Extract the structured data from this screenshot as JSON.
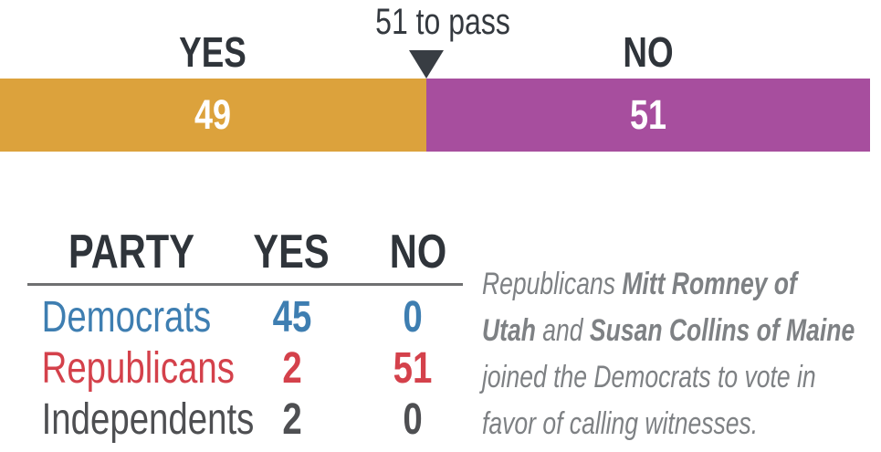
{
  "chart": {
    "threshold_label": "51 to pass",
    "yes_label": "YES",
    "no_label": "NO",
    "yes_value": "49",
    "no_value": "51"
  },
  "chart_data": {
    "type": "bar",
    "subtype": "horizontal-stacked-vote-tally",
    "title": "",
    "categories": [
      "YES",
      "NO"
    ],
    "values": [
      49,
      51
    ],
    "colors": [
      "#dca23c",
      "#a74e9e"
    ],
    "xlim": [
      0,
      100
    ],
    "grid": false,
    "legend": "none",
    "annotations": [
      {
        "label": "51 to pass",
        "x": 49,
        "marker": "down-triangle"
      }
    ],
    "party_breakdown": {
      "columns": [
        "PARTY",
        "YES",
        "NO"
      ],
      "rows": [
        [
          "Democrats",
          45,
          0
        ],
        [
          "Republicans",
          2,
          51
        ],
        [
          "Independents",
          2,
          0
        ]
      ]
    }
  },
  "colors": {
    "yes_bar": "#dca23c",
    "no_bar": "#a74e9e",
    "bar_value_text": "#ffffff",
    "dark_text": "#2f343a",
    "democrat_blue": "#3e7eb1",
    "republican_red": "#d4414b",
    "independent_gray": "#4e4f52",
    "annotation_gray": "#7e8184",
    "rule_gray": "#6f7071",
    "arrow_dark": "#383d43"
  },
  "table": {
    "headers": {
      "party": "PARTY",
      "yes": "YES",
      "no": "NO"
    },
    "rows": [
      {
        "party": "Democrats",
        "yes": "45",
        "no": "0",
        "color": "#3e7eb1"
      },
      {
        "party": "Republicans",
        "yes": "2",
        "no": "51",
        "color": "#d4414b"
      },
      {
        "party": "Independents",
        "yes": "2",
        "no": "0",
        "color": "#4e4f52"
      }
    ]
  },
  "annotation": {
    "lines": [
      [
        {
          "text": "Republicans ",
          "bold": false
        },
        {
          "text": "Mitt Romney of",
          "bold": true
        }
      ],
      [
        {
          "text": "Utah",
          "bold": true
        },
        {
          "text": " and ",
          "bold": false
        },
        {
          "text": "Susan Collins of Maine",
          "bold": true
        }
      ],
      [
        {
          "text": "joined the Democrats to vote in",
          "bold": false
        }
      ],
      [
        {
          "text": "favor of calling witnesses.",
          "bold": false
        }
      ]
    ]
  }
}
